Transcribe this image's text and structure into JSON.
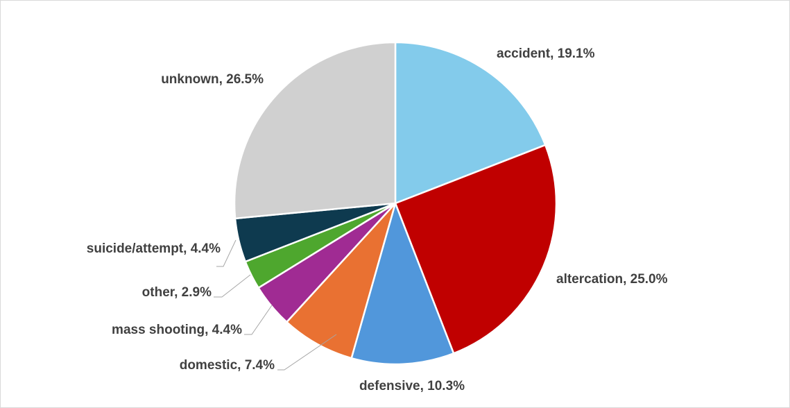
{
  "chart_data": {
    "type": "pie",
    "title": "",
    "slices": [
      {
        "category": "accident",
        "value": 19.1,
        "label": "accident, 19.1%",
        "color": "#83CBEB"
      },
      {
        "category": "altercation",
        "value": 25.0,
        "label": "altercation, 25.0%",
        "color": "#C00000"
      },
      {
        "category": "defensive",
        "value": 10.3,
        "label": "defensive, 10.3%",
        "color": "#5197DB"
      },
      {
        "category": "domestic",
        "value": 7.4,
        "label": "domestic, 7.4%",
        "color": "#E97132"
      },
      {
        "category": "mass shooting",
        "value": 4.4,
        "label": "mass shooting, 4.4%",
        "color": "#A02B93"
      },
      {
        "category": "other",
        "value": 2.9,
        "label": "other, 2.9%",
        "color": "#4EA72E"
      },
      {
        "category": "suicide/attempt",
        "value": 4.4,
        "label": "suicide/attempt, 4.4%",
        "color": "#0E3A4F"
      },
      {
        "category": "unknown",
        "value": 26.5,
        "label": "unknown, 26.5%",
        "color": "#D0D0D0"
      }
    ],
    "start_angle": "12 o'clock",
    "direction": "clockwise",
    "legend": "none",
    "slice_border_color": "#FFFFFF"
  }
}
